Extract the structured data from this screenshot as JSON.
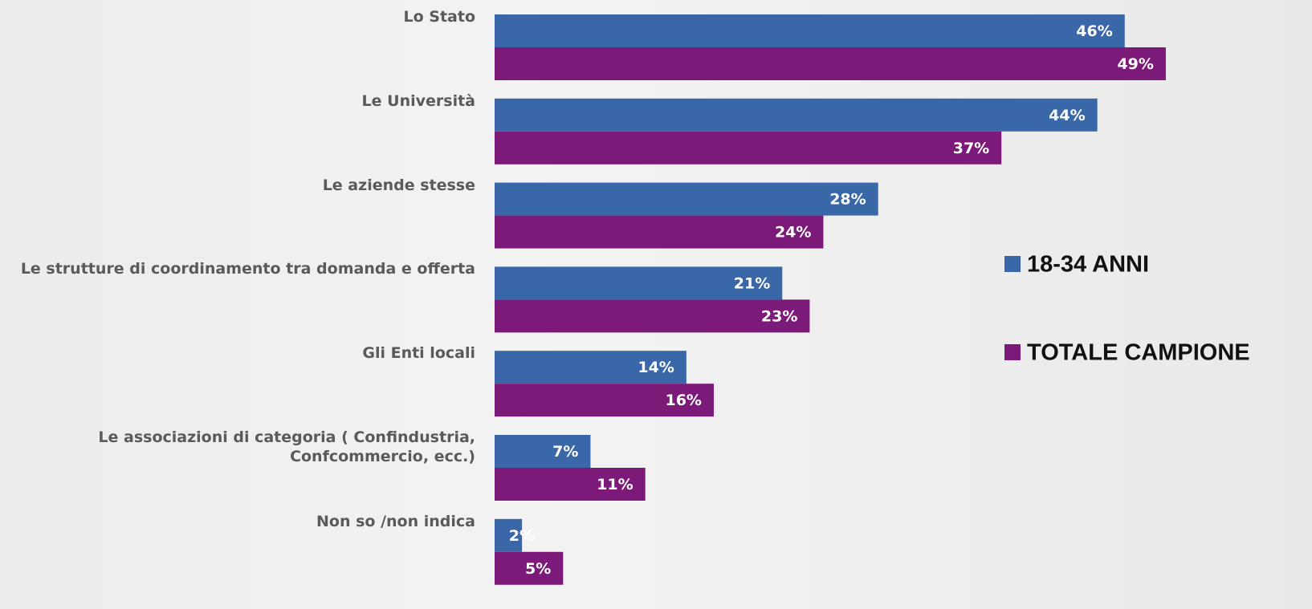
{
  "chart_data": {
    "type": "bar",
    "orientation": "horizontal",
    "categories": [
      "Lo Stato",
      "Le Università",
      "Le aziende stesse",
      "Le strutture di coordinamento tra domanda e offerta",
      "Gli Enti locali",
      "Le associazioni di categoria ( Confindustria,\nConfcommercio, ecc.)",
      "Non so /non indica"
    ],
    "series": [
      {
        "name": "18-34 ANNI",
        "color": "#3a67a8",
        "values": [
          46,
          44,
          28,
          21,
          14,
          7,
          2
        ],
        "value_labels": [
          "46%",
          "44%",
          "28%",
          "21%",
          "14%",
          "7%",
          "2%"
        ]
      },
      {
        "name": "TOTALE CAMPIONE",
        "color": "#7b1a78",
        "values": [
          49,
          37,
          24,
          23,
          16,
          11,
          5
        ],
        "value_labels": [
          "49%",
          "37%",
          "24%",
          "23%",
          "16%",
          "11%",
          "5%"
        ]
      }
    ]
  }
}
